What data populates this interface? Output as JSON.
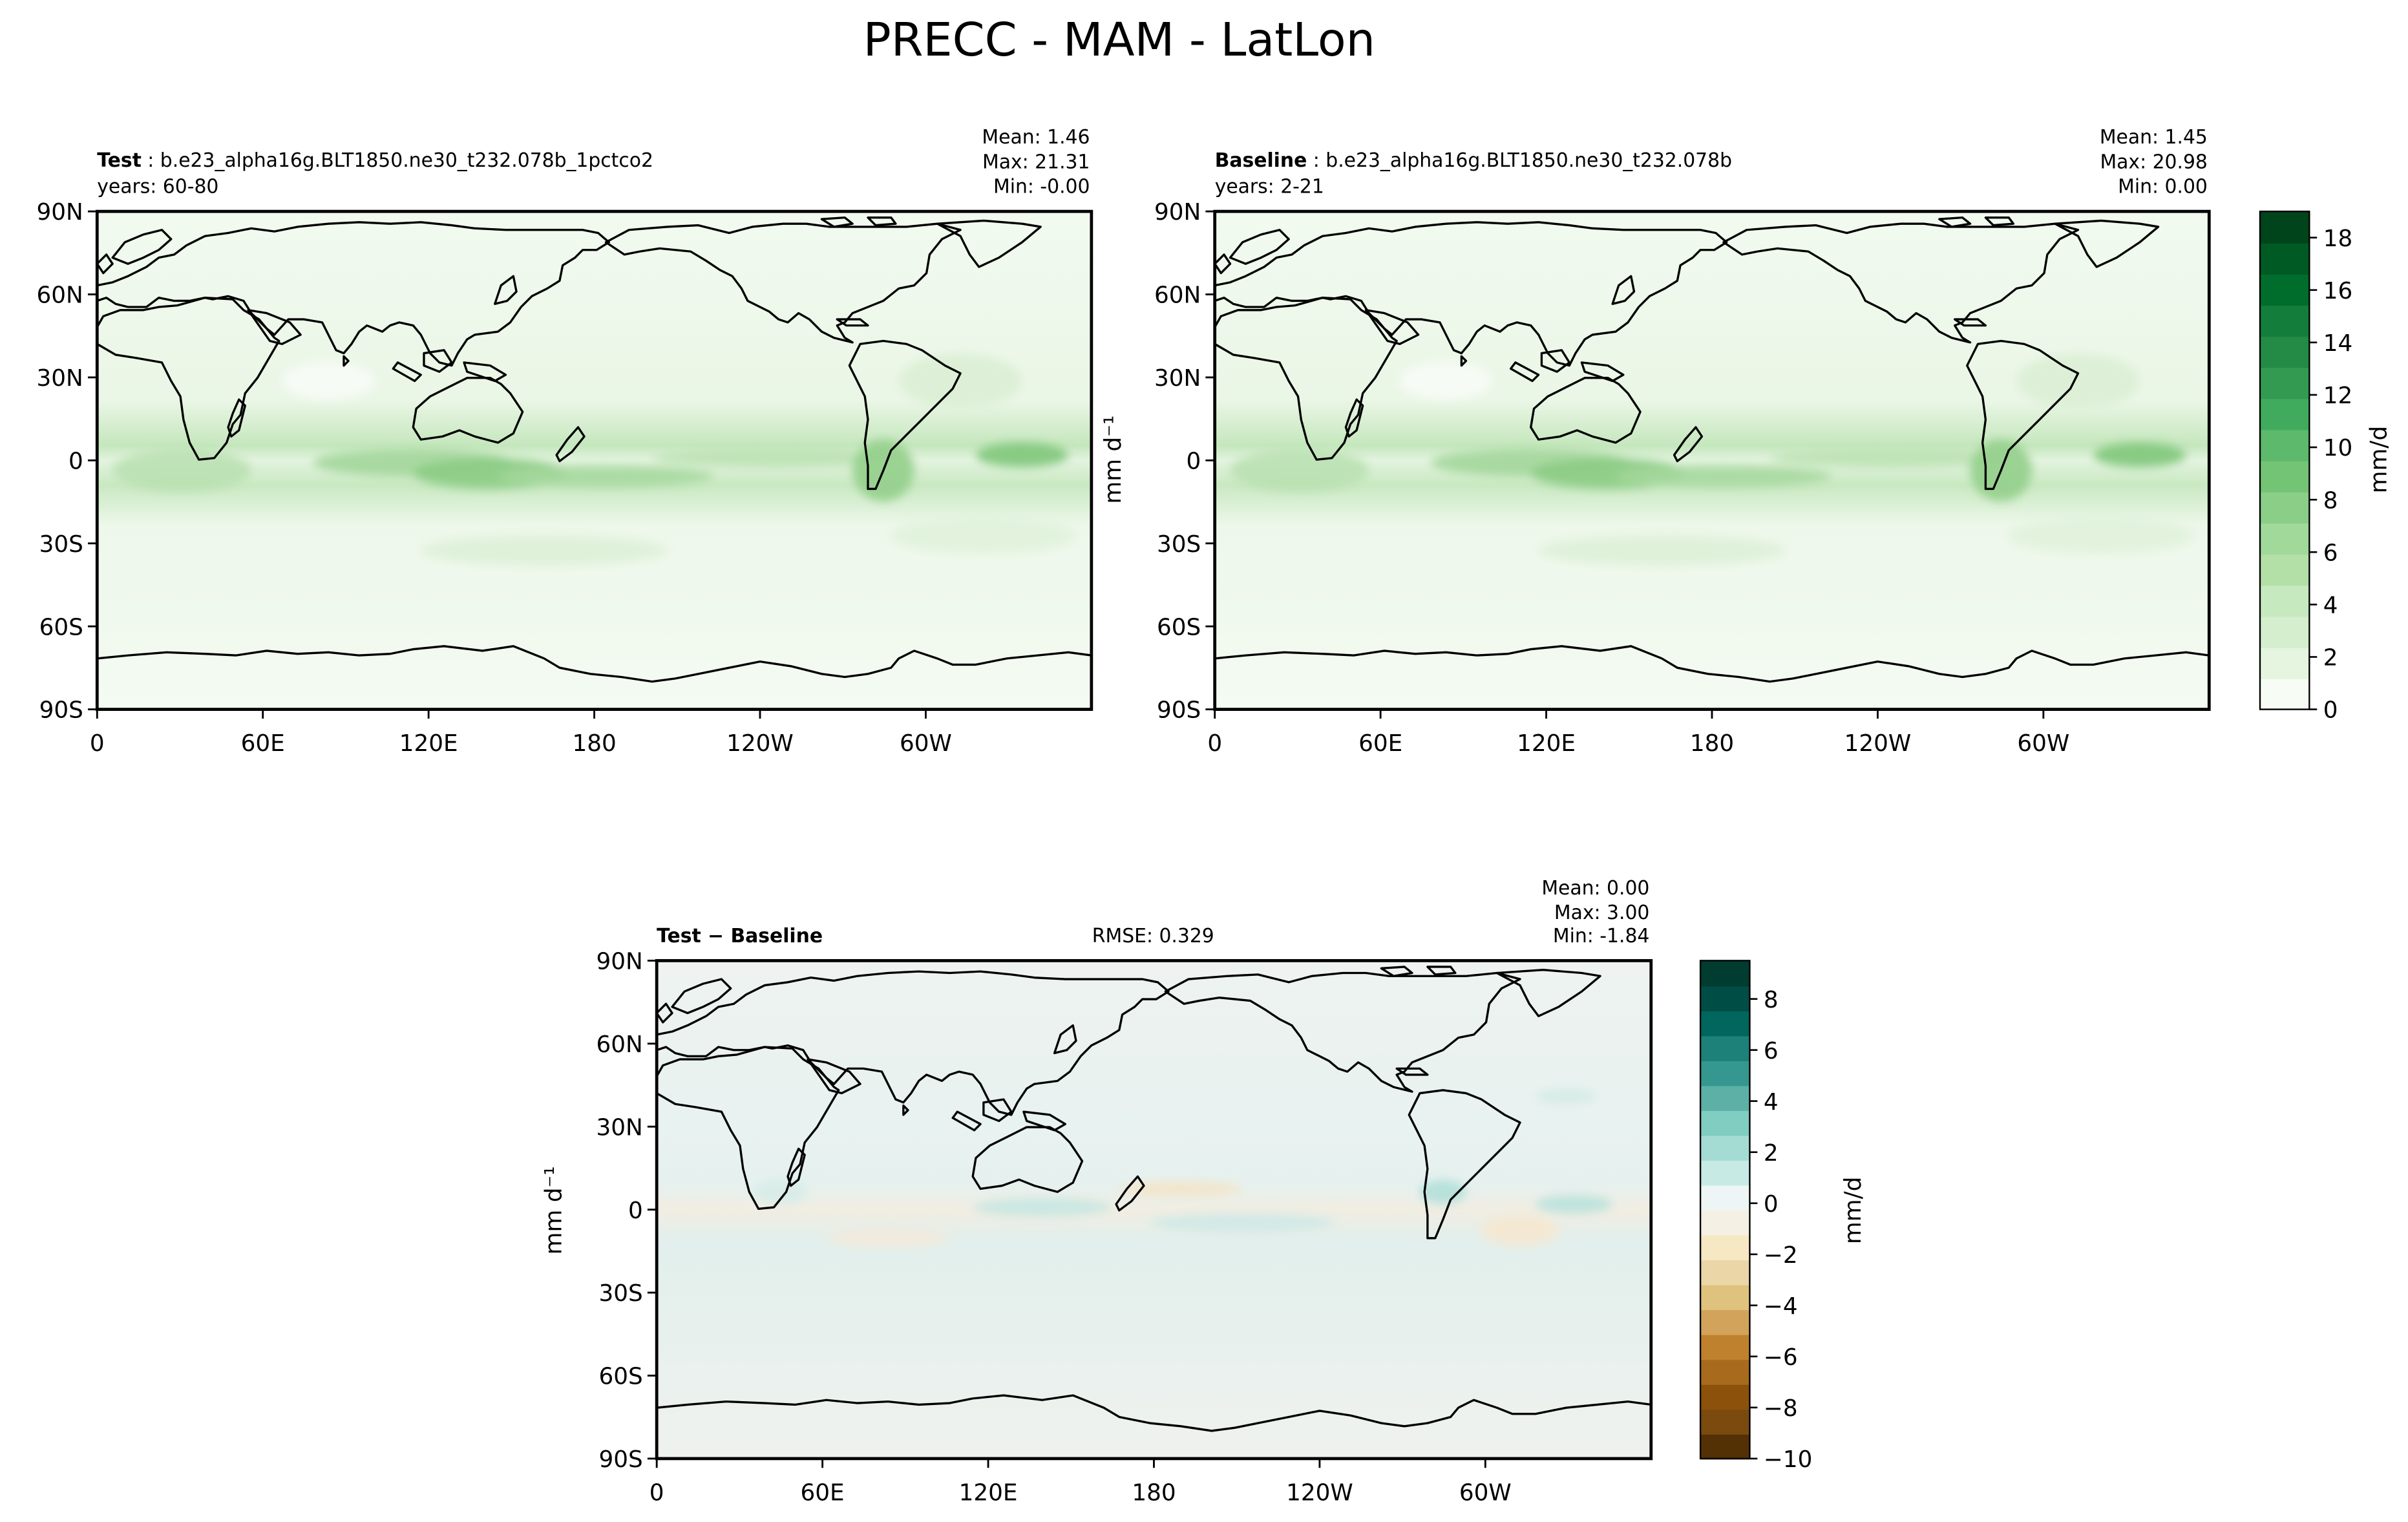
{
  "figure": {
    "title": "PRECC - MAM - LatLon"
  },
  "panels": [
    {
      "id": "test",
      "label_bold": "Test",
      "label_rest": " : b.e23_alpha16g.BLT1850.ne30_t232.078b_1pctco2",
      "years": "years: 60-80",
      "stats": [
        "Mean:  1.46",
        "Max: 21.31",
        "Min: -0.00"
      ],
      "ylabel": ""
    },
    {
      "id": "baseline",
      "label_bold": "Baseline",
      "label_rest": " : b.e23_alpha16g.BLT1850.ne30_t232.078b",
      "years": "years: 2-21",
      "stats": [
        "Mean:  1.45",
        "Max: 20.98",
        "Min:  0.00"
      ],
      "ylabel": "mm d⁻¹"
    },
    {
      "id": "diff",
      "label_bold": "Test − Baseline",
      "label_rest": "",
      "years": "",
      "rmse": "RMSE: 0.329",
      "stats": [
        "Mean:  0.00",
        "Max:  3.00",
        "Min: -1.84"
      ],
      "ylabel": "mm d⁻¹"
    }
  ],
  "axes": {
    "lat_ticks": [
      "90N",
      "60N",
      "30N",
      "0",
      "30S",
      "60S",
      "90S"
    ],
    "lon_ticks": [
      "0",
      "60E",
      "120E",
      "180",
      "120W",
      "60W"
    ]
  },
  "colorbars": {
    "main": {
      "label": "mm/d",
      "ticks": [
        "0",
        "2",
        "4",
        "6",
        "8",
        "10",
        "12",
        "14",
        "16",
        "18"
      ],
      "range": [
        0,
        19
      ],
      "colors": [
        "#f7fcf5",
        "#e5f5e0",
        "#d4eece",
        "#c7e9c0",
        "#b3e0a6",
        "#a1d99b",
        "#8ace88",
        "#74c476",
        "#5db96b",
        "#41ab5d",
        "#329b51",
        "#238b45",
        "#137e3b",
        "#006d2c",
        "#005a24",
        "#00441b"
      ]
    },
    "diff": {
      "label": "mm/d",
      "ticks": [
        "−10",
        "−8",
        "−6",
        "−4",
        "−2",
        "0",
        "2",
        "4",
        "6",
        "8"
      ],
      "range": [
        -10,
        9.5
      ],
      "colors_neg": [
        "#543005",
        "#7a4a0f",
        "#8c510a",
        "#a86a1d",
        "#bf812d",
        "#d2a35a",
        "#dfc27d",
        "#ead6a6",
        "#f6e8c3",
        "#f5f0e4"
      ],
      "colors_pos": [
        "#eef6f5",
        "#c7eae5",
        "#a4dcd4",
        "#80cdc1",
        "#5db0a6",
        "#35978f",
        "#1d8079",
        "#01665e",
        "#004d45",
        "#003c30"
      ]
    }
  }
}
